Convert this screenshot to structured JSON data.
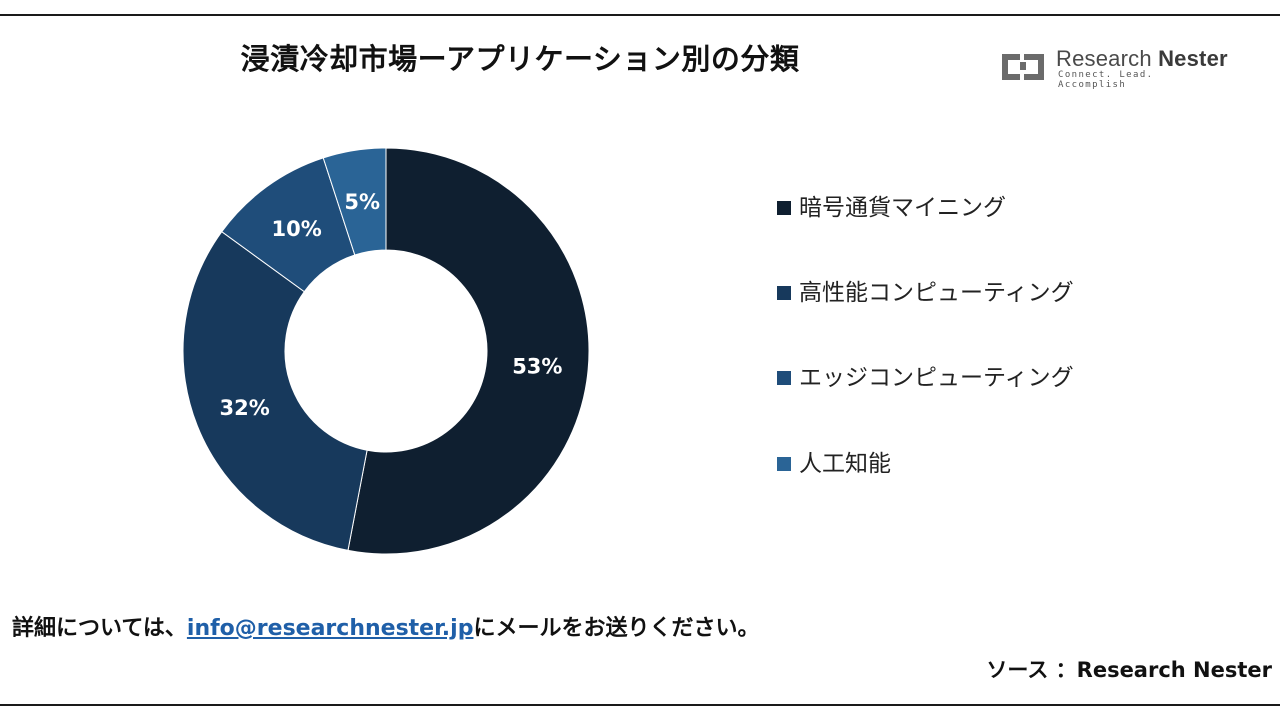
{
  "title": "浸漬冷却市場ーアプリケーション別の分類",
  "logo": {
    "name_regular": "Research",
    "name_bold": "Nester",
    "tagline": "Connect. Lead. Accomplish",
    "icon": "research-nester-logo-icon"
  },
  "chart_data": {
    "type": "pie",
    "donut": true,
    "title": "浸漬冷却市場ーアプリケーション別の分類",
    "categories": [
      "暗号通貨マイニング",
      "高性能コンピューティング",
      "エッジコンピューティング",
      "人工知能"
    ],
    "values": [
      53,
      32,
      10,
      5
    ],
    "data_labels": [
      "53%",
      "32%",
      "10%",
      "5%"
    ],
    "colors": [
      "#0f1f30",
      "#17395c",
      "#1f4d7a",
      "#2a6496"
    ],
    "start_angle_deg": 0,
    "direction": "clockwise",
    "legend_position": "right"
  },
  "legend": {
    "items": [
      {
        "label": "暗号通貨マイニング",
        "color": "#0f1f30"
      },
      {
        "label": "高性能コンピューティング",
        "color": "#17395c"
      },
      {
        "label": "エッジコンピューティング",
        "color": "#1f4d7a"
      },
      {
        "label": "人工知能",
        "color": "#2a6496"
      }
    ]
  },
  "footer": {
    "contact_prefix": "詳細については、",
    "email": "info@researchnester.jp",
    "contact_suffix": "にメールをお送りください。",
    "source": "ソース ：Research Nester"
  }
}
